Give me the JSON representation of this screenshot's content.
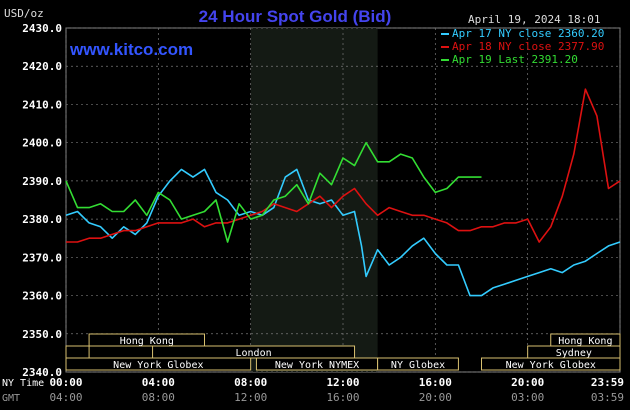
{
  "chart_data": {
    "type": "line",
    "title": "24 Hour Spot Gold (Bid)",
    "ylabel": "USD/oz",
    "watermark": "www.kitco.com",
    "date_label": "April 19, 2024 18:01",
    "ylim": [
      2340,
      2430
    ],
    "yticks": [
      "2340.0",
      "2350.0",
      "2360.0",
      "2370.0",
      "2380.0",
      "2390.0",
      "2400.0",
      "2410.0",
      "2420.0",
      "2430.0"
    ],
    "xlim_hours": [
      0,
      24
    ],
    "x_axis_rows": [
      {
        "label": "NY Time",
        "ticks": [
          "00:00",
          "04:00",
          "08:00",
          "12:00",
          "16:00",
          "20:00",
          "23:59"
        ]
      },
      {
        "label": "GMT",
        "ticks": [
          "04:00",
          "08:00",
          "12:00",
          "16:00",
          "20:00",
          "03:00",
          "03:59"
        ]
      }
    ],
    "tick_hours": [
      0,
      4,
      8,
      12,
      16,
      20,
      24
    ],
    "grid": true,
    "legend_position": "top-right",
    "sessions": [
      {
        "label": "Hong Kong",
        "start": 1.0,
        "end": 6.0,
        "row": 0
      },
      {
        "label": "Hong Kong",
        "start": 21.0,
        "end": 24.0,
        "row": 0
      },
      {
        "label": "London",
        "start": 3.75,
        "end": 12.5,
        "row": 1
      },
      {
        "label": "Sydney",
        "start": 20.0,
        "end": 24.0,
        "row": 1
      },
      {
        "label": "",
        "start": 0.0,
        "end": 1.0,
        "row": 1
      },
      {
        "label": "New York Globex",
        "start": 0.0,
        "end": 8.0,
        "row": 2
      },
      {
        "label": "New York NYMEX",
        "start": 8.25,
        "end": 13.5,
        "row": 2
      },
      {
        "label": "NY Globex",
        "start": 13.5,
        "end": 17.0,
        "row": 2
      },
      {
        "label": "New York Globex",
        "start": 18.0,
        "end": 24.0,
        "row": 2
      }
    ],
    "series": [
      {
        "name": "Apr 17 NY close 2360.20",
        "color": "#33ccff",
        "x": [
          0,
          0.5,
          1,
          1.5,
          2,
          2.5,
          3,
          3.5,
          4,
          4.5,
          5,
          5.5,
          6,
          6.5,
          7,
          7.5,
          8,
          8.5,
          9,
          9.5,
          10,
          10.5,
          11,
          11.5,
          12,
          12.5,
          12.8,
          13,
          13.5,
          14,
          14.5,
          15,
          15.5,
          16,
          16.5,
          17,
          17.5,
          18,
          18.5,
          19,
          19.5,
          20,
          20.5,
          21,
          21.5,
          22,
          22.5,
          23,
          23.5,
          24
        ],
        "y": [
          2381,
          2382,
          2379,
          2378,
          2375,
          2378,
          2376,
          2379,
          2386,
          2390,
          2393,
          2391,
          2393,
          2387,
          2385,
          2381,
          2382,
          2381,
          2383,
          2391,
          2393,
          2385,
          2384,
          2385,
          2381,
          2382,
          2373,
          2365,
          2372,
          2368,
          2370,
          2373,
          2375,
          2371,
          2368,
          2368,
          2360,
          2360,
          2362,
          2363,
          2364,
          2365,
          2366,
          2367,
          2366,
          2368,
          2369,
          2371,
          2373,
          2374
        ]
      },
      {
        "name": "Apr 18 NY close 2377.90",
        "color": "#dd1111",
        "x": [
          0,
          0.5,
          1,
          1.5,
          2,
          2.5,
          3,
          3.5,
          4,
          4.5,
          5,
          5.5,
          6,
          6.5,
          7,
          7.5,
          8,
          8.5,
          9,
          9.5,
          10,
          10.5,
          11,
          11.5,
          12,
          12.5,
          13,
          13.5,
          14,
          14.5,
          15,
          15.5,
          16,
          16.5,
          17,
          17.5,
          18,
          18.5,
          19,
          19.5,
          20,
          20.5,
          21,
          21.5,
          22,
          22.5,
          23,
          23.5,
          24
        ],
        "y": [
          2374,
          2374,
          2375,
          2375,
          2376,
          2377,
          2377,
          2378,
          2379,
          2379,
          2379,
          2380,
          2378,
          2379,
          2379,
          2380,
          2381,
          2382,
          2384,
          2383,
          2382,
          2384,
          2386,
          2383,
          2386,
          2388,
          2384,
          2381,
          2383,
          2382,
          2381,
          2381,
          2380,
          2379,
          2377,
          2377,
          2378,
          2378,
          2379,
          2379,
          2380,
          2374,
          2378,
          2386,
          2397,
          2414,
          2407,
          2388,
          2390
        ]
      },
      {
        "name": "Apr 19 Last 2391.20",
        "color": "#33dd33",
        "x": [
          0,
          0.5,
          1,
          1.5,
          2,
          2.5,
          3,
          3.5,
          4,
          4.5,
          5,
          5.5,
          6,
          6.5,
          7,
          7.5,
          8,
          8.5,
          9,
          9.5,
          10,
          10.5,
          11,
          11.5,
          12,
          12.5,
          13,
          13.5,
          14,
          14.5,
          15,
          15.5,
          16,
          16.5,
          17,
          17.5,
          18
        ],
        "y": [
          2390,
          2383,
          2383,
          2384,
          2382,
          2382,
          2385,
          2381,
          2387,
          2385,
          2380,
          2381,
          2382,
          2385,
          2374,
          2384,
          2380,
          2381,
          2385,
          2386,
          2389,
          2384,
          2392,
          2389,
          2396,
          2394,
          2400,
          2395,
          2395,
          2397,
          2396,
          2391,
          2387,
          2388,
          2391,
          2391,
          2391
        ]
      }
    ]
  }
}
